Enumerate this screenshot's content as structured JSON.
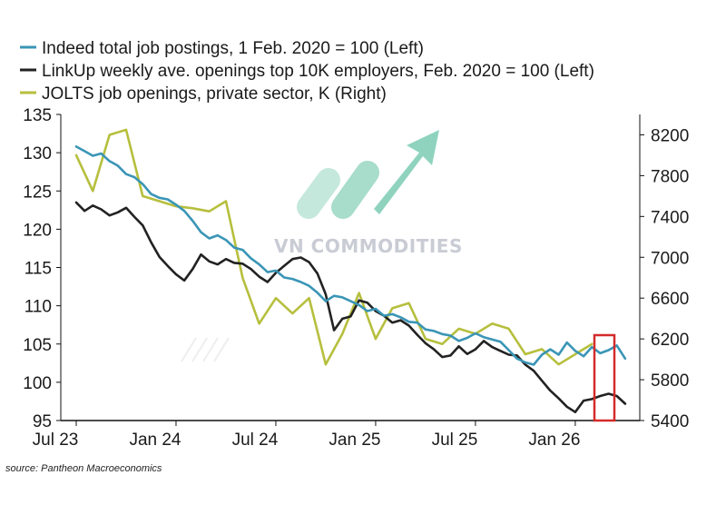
{
  "chart_data": {
    "type": "line",
    "title": "",
    "x_ticks": [
      "Jul 23",
      "Jan 24",
      "Jul 24",
      "Jan 25",
      "Jul 25",
      "Jan 26"
    ],
    "x_range": [
      "2023-07",
      "2026-04"
    ],
    "y_left": {
      "ylim": [
        95,
        135
      ],
      "ticks": [
        "95",
        "100",
        "105",
        "110",
        "115",
        "120",
        "125",
        "130",
        "135"
      ]
    },
    "y_right": {
      "ylim": [
        5400,
        8400
      ],
      "ticks": [
        "5400",
        "5800",
        "6200",
        "6600",
        "7000",
        "7400",
        "7800",
        "8200"
      ]
    },
    "series": [
      {
        "name": "Indeed total job postings, 1 Feb. 2020 = 100 (Left)",
        "axis": "left",
        "color": "#3a95b6",
        "x_months": [
          0,
          0.5,
          1,
          1.5,
          2,
          2.5,
          3,
          3.5,
          4,
          4.5,
          5,
          5.5,
          6,
          6.5,
          7,
          7.5,
          8,
          8.5,
          9,
          9.5,
          10,
          10.5,
          11,
          11.5,
          12,
          12.5,
          13,
          13.5,
          14,
          14.5,
          15,
          15.5,
          16,
          16.5,
          17,
          17.5,
          18,
          18.5,
          19,
          19.5,
          20,
          20.5,
          21,
          21.5,
          22,
          22.5,
          23,
          23.5,
          24,
          24.5,
          25,
          25.5,
          26,
          26.5,
          27,
          27.5,
          28,
          28.5,
          29,
          29.5,
          30,
          30.5,
          31,
          31.5,
          32,
          32.5,
          33
        ],
        "values": [
          130.8,
          130.2,
          129.6,
          129.9,
          128.9,
          128.3,
          127.2,
          126.8,
          125.9,
          124.6,
          124.1,
          123.9,
          123.2,
          122.4,
          121.1,
          119.6,
          118.8,
          119.2,
          118.6,
          117.6,
          117.3,
          116.2,
          115.4,
          114.4,
          114.6,
          113.7,
          113.5,
          113.1,
          112.6,
          111.7,
          110.6,
          111.3,
          111.1,
          110.6,
          110.1,
          109.3,
          109.6,
          108.7,
          108.9,
          108.5,
          107.9,
          107.8,
          106.9,
          106.7,
          106.3,
          106.1,
          105.4,
          105.8,
          106.4,
          105.9,
          105.6,
          105.3,
          104.2,
          103.1,
          102.6,
          102.3,
          103.6,
          104.3,
          103.6,
          105.2,
          104.1,
          103.4,
          104.6,
          103.8,
          104.2,
          104.8,
          103.1
        ]
      },
      {
        "name": "LinkUp weekly ave. openings top 10K employers, Feb. 2020 = 100 (Left)",
        "axis": "left",
        "color": "#222222",
        "x_months": [
          0,
          0.5,
          1,
          1.5,
          2,
          2.5,
          3,
          3.5,
          4,
          4.5,
          5,
          5.5,
          6,
          6.5,
          7,
          7.5,
          8,
          8.5,
          9,
          9.5,
          10,
          10.5,
          11,
          11.5,
          12,
          12.5,
          13,
          13.5,
          14,
          14.5,
          15,
          15.5,
          16,
          16.5,
          17,
          17.5,
          18,
          18.5,
          19,
          19.5,
          20,
          20.5,
          21,
          21.5,
          22,
          22.5,
          23,
          23.5,
          24,
          24.5,
          25,
          25.5,
          26,
          26.5,
          27,
          27.5,
          28,
          28.5,
          29,
          29.5,
          30,
          30.5,
          31,
          31.5,
          32,
          32.5,
          33
        ],
        "values": [
          123.5,
          122.4,
          123.1,
          122.6,
          121.8,
          122.2,
          122.8,
          121.6,
          120.5,
          118.3,
          116.4,
          115.2,
          114.1,
          113.3,
          114.8,
          116.7,
          115.8,
          115.4,
          116.1,
          115.6,
          115.5,
          114.8,
          113.8,
          113.1,
          114.3,
          115.2,
          116.1,
          116.3,
          115.7,
          114.2,
          111.5,
          106.8,
          108.3,
          108.6,
          110.7,
          110.4,
          109.3,
          108.7,
          107.8,
          108.1,
          107.4,
          106.2,
          105.1,
          104.3,
          103.3,
          103.5,
          104.7,
          103.7,
          104.3,
          105.4,
          104.6,
          104.1,
          103.6,
          103.5,
          102.3,
          101.5,
          100.2,
          98.9,
          97.9,
          96.8,
          96.1,
          97.6,
          97.8,
          98.2,
          98.5,
          98.2,
          97.2
        ]
      },
      {
        "name": "JOLTS job openings, private sector, K (Right)",
        "axis": "right",
        "color": "#b6bf3d",
        "x_months": [
          0,
          1,
          2,
          3,
          4,
          5,
          6,
          7,
          8,
          9,
          10,
          11,
          12,
          13,
          14,
          15,
          16,
          17,
          18,
          19,
          20,
          21,
          22,
          23,
          24,
          25,
          26,
          27,
          28,
          29,
          30,
          31
        ],
        "values": [
          8000,
          7650,
          8200,
          8250,
          7600,
          7550,
          7500,
          7480,
          7450,
          7550,
          6800,
          6350,
          6600,
          6450,
          6600,
          5950,
          6250,
          6650,
          6200,
          6500,
          6550,
          6200,
          6150,
          6300,
          6250,
          6350,
          6300,
          6050,
          6100,
          5950,
          6050,
          6150
        ]
      }
    ],
    "annotations": [
      "red box highlighting latest data"
    ]
  },
  "watermark": {
    "text": "VN COMMODITIES",
    "colors": [
      "#c5e8dc",
      "#a8dccb",
      "#8fd3be"
    ]
  },
  "source": "source: Pantheon Macroeconomics",
  "colors": {
    "highlight_box": "#d42a2a",
    "axis": "#111111"
  }
}
